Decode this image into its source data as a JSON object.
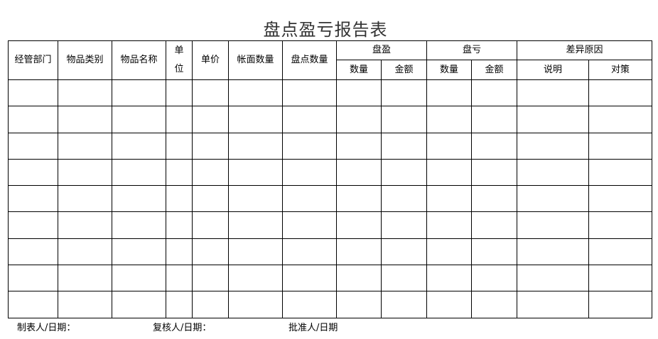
{
  "title": "盘点盈亏报告表",
  "headers": {
    "department": "经管部门",
    "category": "物品类别",
    "item_name": "物品名称",
    "unit_line1": "单",
    "unit_line2": "位",
    "unit_price": "单价",
    "book_qty": "帐面数量",
    "count_qty": "盘点数量",
    "surplus": "盘盈",
    "deficit": "盘亏",
    "diff_reason": "差异原因",
    "qty": "数量",
    "amount": "金额",
    "explanation": "说明",
    "measure": "对策"
  },
  "footer": {
    "prepared_by": "制表人/日期：",
    "reviewed_by": "复核人/日期：",
    "approved_by": "批准人/日期"
  }
}
